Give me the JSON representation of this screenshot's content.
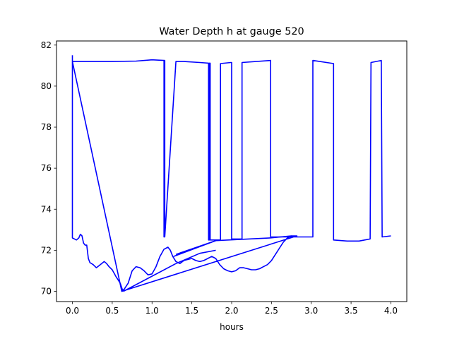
{
  "chart_data": {
    "type": "line",
    "title": "Water Depth h at gauge 520",
    "xlabel": "hours",
    "ylabel": "",
    "xlim": [
      -0.2,
      4.2
    ],
    "ylim": [
      69.5,
      82.2
    ],
    "xticks": [
      0.0,
      0.5,
      1.0,
      1.5,
      2.0,
      2.5,
      3.0,
      3.5,
      4.0
    ],
    "xtick_labels": [
      "0.0",
      "0.5",
      "1.0",
      "1.5",
      "2.0",
      "2.5",
      "3.0",
      "3.5",
      "4.0"
    ],
    "yticks": [
      70,
      72,
      74,
      76,
      78,
      80,
      82
    ],
    "ytick_labels": [
      "70",
      "72",
      "74",
      "76",
      "78",
      "80",
      "82"
    ],
    "grid": false,
    "legend": "none",
    "series": [
      {
        "color": "#0000ff",
        "x": [
          0.0,
          0.0,
          0.05,
          0.08,
          0.1,
          0.12,
          0.14,
          0.16,
          0.18,
          0.2,
          0.22,
          0.26,
          0.3,
          0.35,
          0.4,
          0.43,
          0.46,
          0.5,
          0.55,
          0.6,
          0.63,
          0.65,
          0.7,
          0.75,
          0.8,
          0.85,
          0.9,
          0.95,
          1.0,
          1.05,
          1.1,
          1.15,
          1.2,
          1.23,
          1.26,
          1.3,
          1.35,
          1.4,
          1.45,
          1.5,
          1.55,
          1.6,
          1.65,
          1.7,
          1.75,
          1.8,
          1.85,
          1.9,
          1.95,
          2.0,
          2.05,
          2.1,
          2.15,
          2.2,
          2.25,
          2.3,
          2.35,
          2.4,
          2.45,
          2.5,
          2.55,
          2.6,
          2.65,
          2.7,
          2.75,
          2.8,
          2.82,
          0.62,
          0.62,
          0.0,
          0.0,
          0.5,
          0.8,
          1.0,
          1.15,
          1.15,
          1.15,
          1.16,
          1.16,
          1.3,
          1.4,
          1.6,
          1.71,
          1.71,
          1.72,
          1.72,
          1.73,
          1.73,
          1.85,
          1.86,
          1.86,
          1.99,
          2.0,
          2.0,
          2.12,
          2.13,
          2.13,
          2.49,
          2.49,
          3.02,
          3.02,
          3.28,
          3.28,
          3.45,
          3.6,
          3.67,
          3.74,
          3.75,
          3.88,
          3.89,
          4.0
        ],
        "y": [
          81.5,
          72.6,
          72.5,
          72.6,
          72.78,
          72.7,
          72.35,
          72.25,
          72.25,
          71.6,
          71.4,
          71.3,
          71.15,
          71.3,
          71.45,
          71.35,
          71.2,
          71.05,
          70.7,
          70.4,
          70.05,
          70.1,
          70.4,
          71.0,
          71.2,
          71.15,
          71.0,
          70.8,
          70.85,
          71.2,
          71.7,
          72.05,
          72.15,
          72.0,
          71.7,
          71.45,
          71.35,
          71.5,
          71.55,
          71.6,
          71.5,
          71.45,
          71.5,
          71.6,
          71.7,
          71.6,
          71.3,
          71.1,
          71.0,
          70.95,
          71.0,
          71.15,
          71.15,
          71.1,
          71.05,
          71.05,
          71.1,
          71.2,
          71.3,
          71.5,
          71.8,
          72.1,
          72.4,
          72.6,
          72.7,
          72.7,
          72.7,
          70.0,
          70.0,
          81.2,
          81.2,
          81.2,
          81.22,
          81.28,
          81.25,
          72.65,
          81.25,
          81.25,
          72.65,
          81.2,
          81.2,
          81.15,
          81.12,
          72.5,
          72.5,
          81.12,
          81.12,
          72.5,
          72.5,
          72.5,
          81.1,
          81.15,
          81.15,
          72.55,
          72.55,
          72.55,
          81.15,
          81.25,
          72.65,
          72.65,
          81.25,
          81.1,
          72.5,
          72.45,
          72.45,
          72.5,
          72.55,
          81.15,
          81.25,
          72.65,
          72.7
        ]
      },
      {
        "color": "#0000ff",
        "x": [
          1.27,
          1.8,
          2.48,
          2.75
        ],
        "y": [
          71.7,
          72.47,
          72.6,
          72.7
        ]
      },
      {
        "color": "#0000ff",
        "x": [
          0.64,
          1.3,
          1.6,
          1.8
        ],
        "y": [
          70.0,
          71.35,
          71.85,
          72.0
        ]
      },
      {
        "color": "#0000ff",
        "x": [
          1.3,
          1.8
        ],
        "y": [
          71.8,
          72.47
        ]
      }
    ]
  }
}
